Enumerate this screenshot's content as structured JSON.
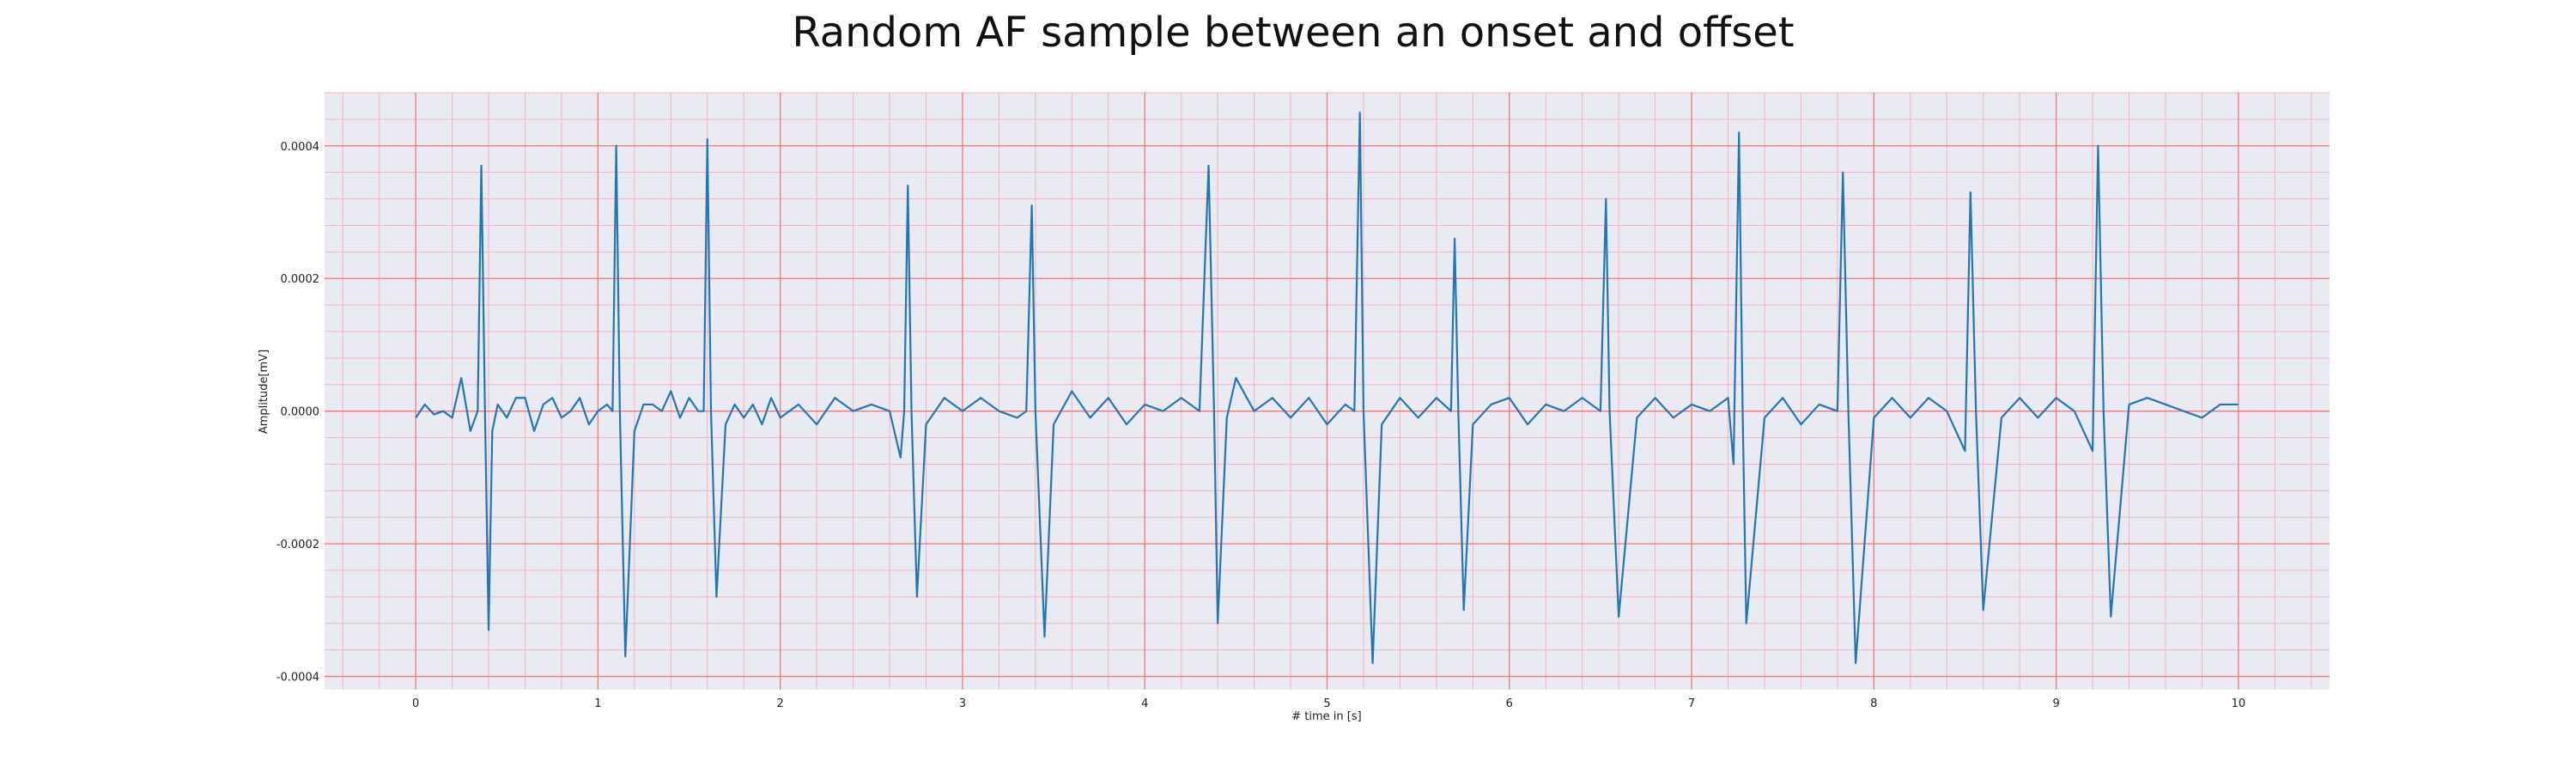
{
  "chart_data": {
    "type": "line",
    "title": "Random AF sample between an onset and offset",
    "xlabel": "# time in [s]",
    "ylabel": "Amplitude[mV]",
    "xlim": [
      -0.5,
      10.5
    ],
    "ylim": [
      -0.00042,
      0.00048
    ],
    "x_ticks": [
      0,
      1,
      2,
      3,
      4,
      5,
      6,
      7,
      8,
      9,
      10
    ],
    "x_tick_labels": [
      "0",
      "1",
      "2",
      "3",
      "4",
      "5",
      "6",
      "7",
      "8",
      "9",
      "10"
    ],
    "y_ticks": [
      -0.0004,
      -0.0002,
      0.0,
      0.0002,
      0.0004
    ],
    "y_tick_labels": [
      "-0.0004",
      "-0.0002",
      "0.0000",
      "0.0002",
      "0.0004"
    ],
    "grid": true,
    "minor_grid": true,
    "colors": {
      "line": "#1f77b4",
      "plot_background": "#eaeaf2",
      "major_grid": "#f07a7a",
      "minor_grid": "#f4b3bf"
    },
    "series": [
      {
        "x": [
          0,
          0.05,
          0.1,
          0.15,
          0.2,
          0.25,
          0.3,
          0.34,
          0.36,
          0.38,
          0.4,
          0.42,
          0.45,
          0.5,
          0.55,
          0.6,
          0.65,
          0.7,
          0.75,
          0.8,
          0.85,
          0.9,
          0.95,
          1.0,
          1.05,
          1.08,
          1.1,
          1.12,
          1.15,
          1.2,
          1.25,
          1.3,
          1.35,
          1.4,
          1.45,
          1.5,
          1.55,
          1.58,
          1.6,
          1.62,
          1.65,
          1.7,
          1.75,
          1.8,
          1.85,
          1.9,
          1.95,
          2.0,
          2.1,
          2.2,
          2.3,
          2.4,
          2.5,
          2.6,
          2.66,
          2.68,
          2.7,
          2.72,
          2.75,
          2.8,
          2.9,
          3.0,
          3.1,
          3.2,
          3.3,
          3.35,
          3.38,
          3.4,
          3.45,
          3.5,
          3.6,
          3.7,
          3.8,
          3.9,
          4.0,
          4.1,
          4.2,
          4.3,
          4.35,
          4.38,
          4.4,
          4.45,
          4.5,
          4.6,
          4.7,
          4.8,
          4.9,
          5.0,
          5.1,
          5.15,
          5.18,
          5.2,
          5.25,
          5.3,
          5.4,
          5.5,
          5.6,
          5.68,
          5.7,
          5.72,
          5.75,
          5.8,
          5.9,
          6.0,
          6.1,
          6.2,
          6.3,
          6.4,
          6.5,
          6.53,
          6.55,
          6.6,
          6.7,
          6.8,
          6.9,
          7.0,
          7.1,
          7.2,
          7.23,
          7.26,
          7.28,
          7.3,
          7.4,
          7.5,
          7.6,
          7.7,
          7.8,
          7.83,
          7.86,
          7.9,
          8.0,
          8.1,
          8.2,
          8.3,
          8.4,
          8.5,
          8.53,
          8.56,
          8.6,
          8.7,
          8.8,
          8.9,
          9.0,
          9.1,
          9.2,
          9.23,
          9.26,
          9.3,
          9.4,
          9.5,
          9.6,
          9.7,
          9.8,
          9.9,
          10.0
        ],
        "y": [
          -1e-05,
          1e-05,
          -5e-06,
          0.0,
          -1e-05,
          5e-05,
          -3e-05,
          0.0,
          0.00037,
          0.0,
          -0.00033,
          -3e-05,
          1e-05,
          -1e-05,
          2e-05,
          2e-05,
          -3e-05,
          1e-05,
          2e-05,
          -1e-05,
          0.0,
          2e-05,
          -2e-05,
          0.0,
          1e-05,
          0.0,
          0.0004,
          0.0,
          -0.00037,
          -3e-05,
          1e-05,
          1e-05,
          0.0,
          3e-05,
          -1e-05,
          2e-05,
          0.0,
          0.0,
          0.00041,
          0.0,
          -0.00028,
          -2e-05,
          1e-05,
          -1e-05,
          1e-05,
          -2e-05,
          2e-05,
          -1e-05,
          1e-05,
          -2e-05,
          2e-05,
          0.0,
          1e-05,
          0.0,
          -7e-05,
          0.0,
          0.00034,
          0.0,
          -0.00028,
          -2e-05,
          2e-05,
          0.0,
          2e-05,
          0.0,
          -1e-05,
          0.0,
          0.00031,
          0.0,
          -0.00034,
          -2e-05,
          3e-05,
          -1e-05,
          2e-05,
          -2e-05,
          1e-05,
          0.0,
          2e-05,
          0.0,
          0.00037,
          0.0,
          -0.00032,
          -1e-05,
          5e-05,
          0.0,
          2e-05,
          -1e-05,
          2e-05,
          -2e-05,
          1e-05,
          0.0,
          0.00045,
          0.0,
          -0.00038,
          -2e-05,
          2e-05,
          -1e-05,
          2e-05,
          0.0,
          0.00026,
          0.0,
          -0.0003,
          -2e-05,
          1e-05,
          2e-05,
          -2e-05,
          1e-05,
          0.0,
          2e-05,
          0.0,
          0.00032,
          0.0,
          -0.00031,
          -1e-05,
          2e-05,
          -1e-05,
          1e-05,
          0.0,
          2e-05,
          -8e-05,
          0.00042,
          0.0,
          -0.00032,
          -1e-05,
          2e-05,
          -2e-05,
          1e-05,
          0.0,
          0.00036,
          0.0,
          -0.00038,
          -1e-05,
          2e-05,
          -1e-05,
          2e-05,
          0.0,
          -6e-05,
          0.00033,
          0.0,
          -0.0003,
          -1e-05,
          2e-05,
          -1e-05,
          2e-05,
          0.0,
          -6e-05,
          0.0004,
          0.0,
          -0.00031,
          1e-05,
          2e-05,
          1e-05,
          0.0,
          -1e-05,
          1e-05,
          1e-05
        ]
      }
    ]
  }
}
